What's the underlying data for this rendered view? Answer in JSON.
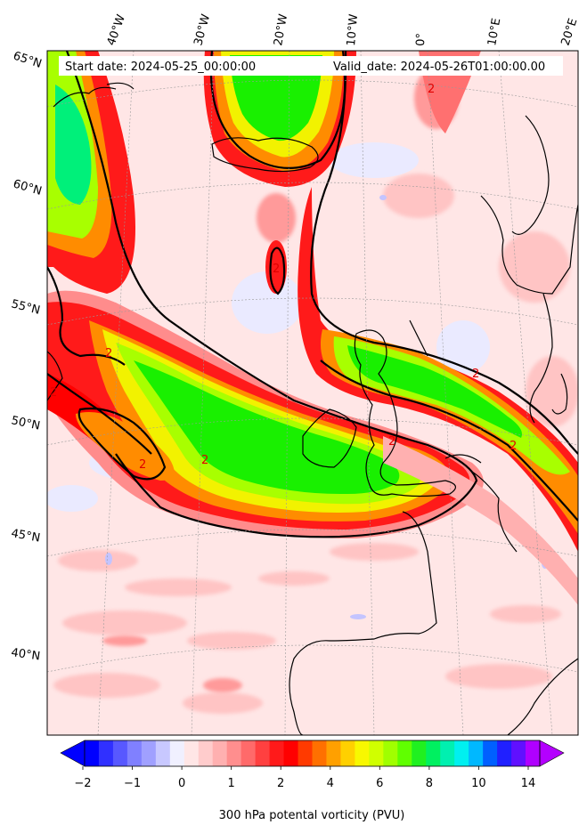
{
  "header": {
    "start_label": "Start date: 2024-05-25_00:00:00",
    "valid_label": "Valid_date: 2024-05-26T01:00:00.00"
  },
  "map": {
    "lon_labels": [
      "40°W",
      "30°W",
      "20°W",
      "10°W",
      "0°",
      "10°E",
      "20°E"
    ],
    "lat_labels": [
      "65°N",
      "60°N",
      "55°N",
      "50°N",
      "45°N",
      "40°N"
    ],
    "contour_value_label": "2",
    "colors": {
      "background": "#ffe6e6",
      "light_pink": "#ffc4c4",
      "pink": "#ff8c8c",
      "red": "#ff1a1a",
      "orange": "#ff8c00",
      "yellow": "#f2f200",
      "yellow_green": "#a8ff00",
      "green": "#19f000",
      "spring_green": "#00f090",
      "pale_blue": "#eef0ff",
      "coast": "#000000"
    }
  },
  "colorbar": {
    "label": "300 hPa potental vorticity (PVU)",
    "tick_labels": [
      "−2",
      "−1",
      "0",
      "1",
      "2",
      "4",
      "6",
      "8",
      "10",
      "14"
    ],
    "colors": [
      "#0000ff",
      "#3030ff",
      "#5858ff",
      "#8080ff",
      "#a0a0ff",
      "#c8c8ff",
      "#f0f0ff",
      "#ffe6e6",
      "#ffcccc",
      "#ffb0b0",
      "#ff8e8e",
      "#ff6a6a",
      "#ff4040",
      "#ff1a1a",
      "#ff0000",
      "#ff3a00",
      "#ff7000",
      "#ffa000",
      "#ffd000",
      "#f8f800",
      "#d0ff00",
      "#a0ff00",
      "#60ff00",
      "#20f020",
      "#00f060",
      "#00f0b0",
      "#00f0f0",
      "#00b8ff",
      "#0060ff",
      "#2020ff",
      "#6010ff",
      "#b000ff"
    ],
    "min_arrow_color": "#0000ff",
    "max_arrow_color": "#b400ff"
  }
}
